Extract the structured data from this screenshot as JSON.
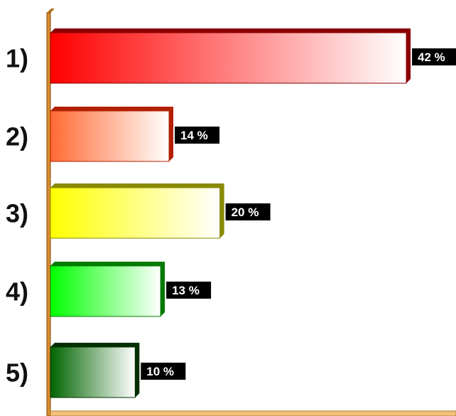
{
  "chart_data": {
    "type": "bar",
    "orientation": "horizontal",
    "categories": [
      "1)",
      "2)",
      "3)",
      "4)",
      "5)"
    ],
    "values": [
      42,
      14,
      20,
      13,
      10
    ],
    "value_labels": [
      "42 %",
      "14 %",
      "20 %",
      "13 %",
      "10 %"
    ],
    "unit": "%",
    "xlim": [
      0,
      45
    ],
    "grid": false,
    "legend": "none",
    "style": "3d-gradient",
    "colors": [
      "#ff0000",
      "#ff6a33",
      "#ffff00",
      "#00ff00",
      "#006400"
    ],
    "side_colors": [
      "#8b0000",
      "#b22000",
      "#8a8a00",
      "#007a00",
      "#003000"
    ],
    "axis_color": "#d98c2b",
    "label_background": "#000000"
  }
}
